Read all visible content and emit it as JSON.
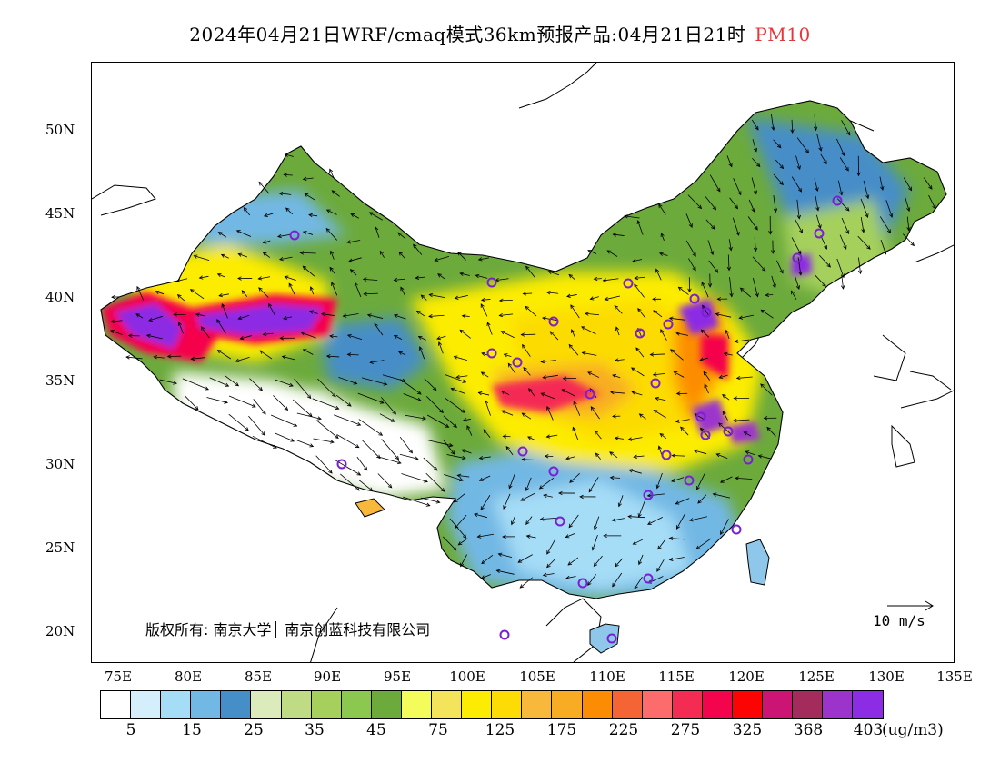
{
  "title": {
    "main": "2024年04月21日WRF/cmaq模式36km预报产品:04月21日21时",
    "pollutant": "PM10",
    "pollutant_color": "#e8353a"
  },
  "map": {
    "lat_labels": [
      "50N",
      "45N",
      "40N",
      "35N",
      "30N",
      "25N",
      "20N"
    ],
    "lon_labels": [
      "75E",
      "80E",
      "85E",
      "90E",
      "95E",
      "100E",
      "105E",
      "110E",
      "115E",
      "120E",
      "125E",
      "130E",
      "135E"
    ],
    "copyright": "版权所有: 南京大学│ 南京创蓝科技有限公司",
    "wind_legend": "10 m/s"
  },
  "colorbar": {
    "colors": [
      "#ffffff",
      "#d4eefc",
      "#a5dcf6",
      "#72b8e4",
      "#468ec8",
      "#dcebbc",
      "#bfdc84",
      "#a5d05c",
      "#8cc850",
      "#6caa3c",
      "#f4fc5c",
      "#f4e45c",
      "#fcec04",
      "#fcdc04",
      "#f8b83c",
      "#f8ac24",
      "#fc8c04",
      "#f46434",
      "#fc6c6c",
      "#f42c54",
      "#f4044c",
      "#fc0404",
      "#cc1474",
      "#a42c5c",
      "#9c34cc",
      "#8c2ce4"
    ],
    "tick_labels": [
      "5",
      "15",
      "25",
      "35",
      "45",
      "75",
      "125",
      "175",
      "225",
      "275",
      "325",
      "368",
      "403"
    ],
    "unit": "(ug/m3)"
  }
}
